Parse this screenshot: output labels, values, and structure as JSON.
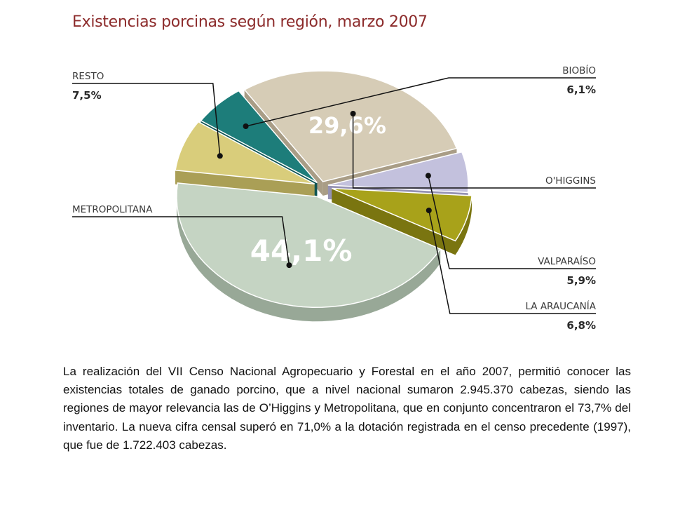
{
  "chart_data": {
    "type": "pie",
    "title": "Existencias porcinas según región, marzo 2007",
    "unit": "%",
    "slices": [
      {
        "label": "O'HIGGINS",
        "value": 29.6,
        "value_text": "29,6%",
        "color": "#d6ccb6",
        "side": "#a99d86",
        "label_style": "inside"
      },
      {
        "label": "VALPARAÍSO",
        "value": 5.9,
        "value_text": "5,9%",
        "color": "#c3c1dd",
        "side": "#9592b3",
        "label_style": "callout"
      },
      {
        "label": "LA ARAUCANÍA",
        "value": 6.8,
        "value_text": "6,8%",
        "color": "#a8a21a",
        "side": "#7a7510",
        "label_style": "callout"
      },
      {
        "label": "METROPOLITANA",
        "value": 44.1,
        "value_text": "44,1%",
        "color": "#c5d4c3",
        "side": "#98a897",
        "label_style": "inside"
      },
      {
        "label": "RESTO",
        "value": 7.5,
        "value_text": "7,5%",
        "color": "#d9cd7b",
        "side": "#aa9f56",
        "label_style": "callout"
      },
      {
        "label": "BIOBÍO",
        "value": 6.1,
        "value_text": "6,1%",
        "color": "#1d7d7a",
        "side": "#0f5553",
        "label_style": "callout"
      }
    ]
  },
  "body_text": "La realización del VII Censo Nacional Agropecuario y Forestal en el año 2007, permitió conocer las existencias totales de ganado porcino, que a nivel nacional sumaron 2.945.370 cabezas, siendo las regiones de mayor relevancia las de O’Higgins y Metropolitana, que en conjunto concentraron el 73,7% del inventario. La nueva cifra censal superó en 71,0% a la dotación registrada en el censo precedente (1997), que fue de 1.722.403 cabezas."
}
